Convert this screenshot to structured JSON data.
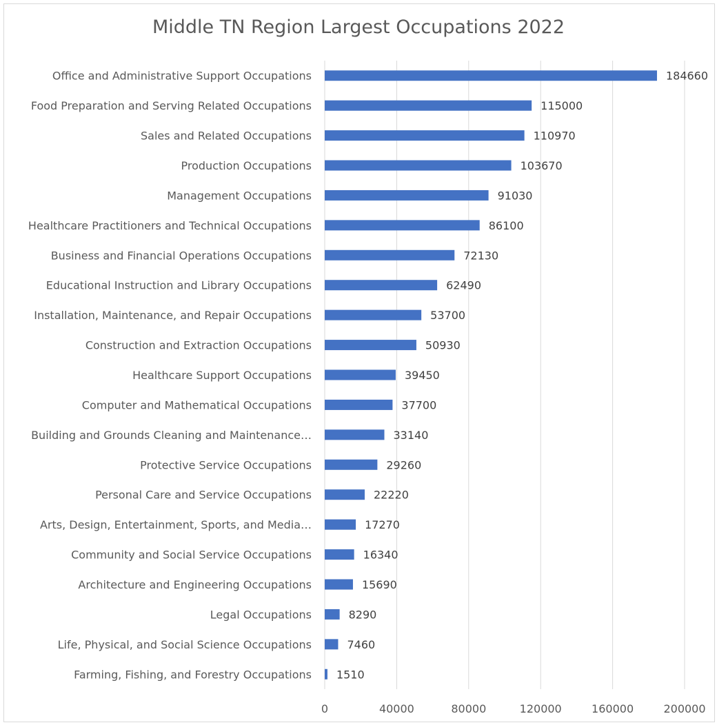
{
  "chart_data": {
    "type": "bar",
    "orientation": "horizontal",
    "title": "Middle TN Region Largest Occupations 2022",
    "xlabel": "",
    "ylabel": "",
    "xlim": [
      0,
      200000
    ],
    "x_ticks": [
      "0",
      "40000",
      "80000",
      "120000",
      "160000",
      "200000"
    ],
    "grid": true,
    "legend": "none",
    "bar_color": "#4472c4",
    "categories": [
      "Office and Administrative Support Occupations",
      "Food Preparation and Serving Related Occupations",
      "Sales and Related Occupations",
      "Production Occupations",
      "Management Occupations",
      "Healthcare Practitioners and Technical Occupations",
      "Business and Financial Operations Occupations",
      "Educational Instruction and Library Occupations",
      "Installation, Maintenance, and Repair Occupations",
      "Construction and Extraction Occupations",
      "Healthcare Support Occupations",
      "Computer and Mathematical Occupations",
      "Building and Grounds Cleaning and Maintenance…",
      "Protective Service Occupations",
      "Personal Care and Service Occupations",
      "Arts, Design, Entertainment, Sports, and Media…",
      "Community and Social Service Occupations",
      "Architecture and Engineering Occupations",
      "Legal Occupations",
      "Life, Physical, and Social Science Occupations",
      "Farming, Fishing, and Forestry Occupations"
    ],
    "values": [
      184660,
      115000,
      110970,
      103670,
      91030,
      86100,
      72130,
      62490,
      53700,
      50930,
      39450,
      37700,
      33140,
      29260,
      22220,
      17270,
      16340,
      15690,
      8290,
      7460,
      1510
    ],
    "data_labels": [
      "184660",
      "115000",
      "110970",
      "103670",
      "91030",
      "86100",
      "72130",
      "62490",
      "53700",
      "50930",
      "39450",
      "37700",
      "33140",
      "29260",
      "22220",
      "17270",
      "16340",
      "15690",
      "8290",
      "7460",
      "1510"
    ]
  }
}
